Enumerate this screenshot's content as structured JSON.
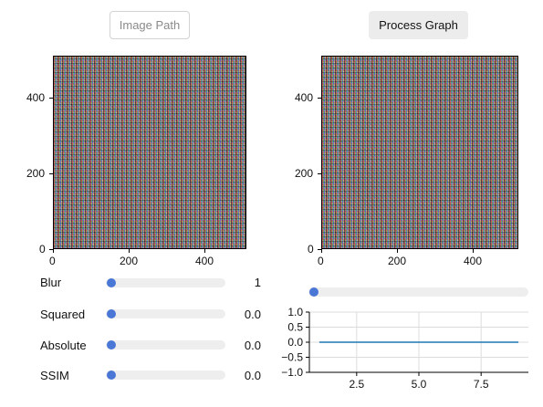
{
  "toolbar": {
    "image_path_label": "Image Path",
    "process_graph_label": "Process Graph"
  },
  "image_plot_left": {
    "xticks": [
      "0",
      "200",
      "400"
    ],
    "yticks": [
      "0",
      "200",
      "400"
    ]
  },
  "image_plot_right": {
    "xticks": [
      "0",
      "200",
      "400"
    ],
    "yticks": [
      "0",
      "200",
      "400"
    ]
  },
  "sliders": [
    {
      "label": "Blur",
      "value": "1"
    },
    {
      "label": "Squared",
      "value": "0.0"
    },
    {
      "label": "Absolute",
      "value": "0.0"
    },
    {
      "label": "SSIM",
      "value": "0.0"
    }
  ],
  "right_slider": {
    "value_fraction": 0.0
  },
  "line_plot": {
    "yticks": [
      "1.0",
      "0.5",
      "0.0",
      "−0.5",
      "−1.0"
    ],
    "xticks": [
      "2.5",
      "5.0",
      "7.5"
    ]
  },
  "chart_data": {
    "type": "line",
    "x": [
      1,
      2,
      3,
      4,
      5,
      6,
      7,
      8,
      9
    ],
    "series": [
      {
        "values": [
          0,
          0,
          0,
          0,
          0,
          0,
          0,
          0,
          0
        ],
        "color": "#1f77b4"
      }
    ],
    "xlim": [
      0.6,
      9.4
    ],
    "ylim": [
      -1.0,
      1.0
    ],
    "xtick_values": [
      2.5,
      5.0,
      7.5
    ],
    "ytick_values": [
      1.0,
      0.5,
      0.0,
      -0.5,
      -1.0
    ],
    "grid": true
  },
  "colors": {
    "accent": "#4a77d6",
    "line": "#1f77b4",
    "track": "#eeeeee"
  }
}
